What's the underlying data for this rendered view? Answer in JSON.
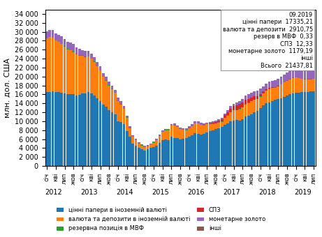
{
  "chart_data": {
    "type": "bar",
    "stacked": true,
    "ylabel": "млн. дол. США",
    "ylim": [
      0,
      35000
    ],
    "yticks": [
      0,
      {
        "value": 2000,
        "label": "2 000"
      },
      {
        "value": 4000,
        "label": "4 000"
      },
      {
        "value": 6000,
        "label": "6 000"
      },
      {
        "value": 8000,
        "label": "8 000"
      },
      {
        "value": 10000,
        "label": "10 000"
      },
      {
        "value": 12000,
        "label": "12 000"
      },
      {
        "value": 14000,
        "label": "14 000"
      },
      {
        "value": 16000,
        "label": "16 000"
      },
      {
        "value": 18000,
        "label": "18 000"
      },
      {
        "value": 20000,
        "label": "20 000"
      },
      {
        "value": 22000,
        "label": "22 000"
      },
      {
        "value": 24000,
        "label": "24 000"
      },
      {
        "value": 26000,
        "label": "26 000"
      },
      {
        "value": 28000,
        "label": "28 000"
      },
      {
        "value": 30000,
        "label": "30 000"
      },
      {
        "value": 32000,
        "label": "32 000"
      },
      {
        "value": 34000,
        "label": "34 000"
      }
    ],
    "legend": "lower center",
    "categories": [
      "січ",
      null,
      null,
      "кві",
      null,
      null,
      "лип",
      null,
      null,
      "жов",
      null,
      null,
      "січ",
      null,
      null,
      "кві",
      null,
      null,
      "лип",
      null,
      null,
      "жов",
      null,
      null,
      "січ",
      null,
      null,
      "кві",
      null,
      null,
      "лип",
      null,
      null,
      "жов",
      null,
      null,
      "січ",
      null,
      null,
      "кві",
      null,
      null,
      "лип",
      null,
      null,
      "жов",
      null,
      null,
      "січ",
      null,
      null,
      "кві",
      null,
      null,
      "лип",
      null,
      null,
      "жов",
      null,
      null,
      "січ",
      null,
      null,
      "кві",
      null,
      null,
      "лип",
      null,
      null,
      "жов",
      null,
      null,
      "січ",
      null,
      null,
      "кві",
      null,
      null,
      "лип",
      null,
      null,
      "жов",
      null,
      null,
      "січ",
      null,
      null,
      "кві",
      null,
      null,
      "лип"
    ],
    "annotations": [
      {
        "text": "2012",
        "x": 0
      },
      {
        "text": "2013",
        "x": 12
      },
      {
        "text": "2014",
        "x": 24
      },
      {
        "text": "2015",
        "x": 36
      },
      {
        "text": "2016",
        "x": 48
      },
      {
        "text": "2017",
        "x": 60
      },
      {
        "text": "2018",
        "x": 72
      },
      {
        "text": "2019",
        "x": 84
      },
      {
        "text": "09.2019\nцінні папери  17335,21\nвалюта та депозити  2910,75\nрезерв в МВФ  0,33\nСПЗ  12,33\nмонетарне золото  1179,19\nінші\nВсього  21437,81"
      }
    ],
    "series": [
      {
        "name": "цінні папери в іноземній валюті",
        "values": [
          16500,
          16600,
          16700,
          16500,
          16500,
          16300,
          16200,
          16100,
          16100,
          16000,
          15800,
          15900,
          16200,
          16200,
          16500,
          16200,
          15800,
          15100,
          14500,
          13700,
          13300,
          12500,
          12000,
          11500,
          10000,
          9800,
          9300,
          7800,
          6500,
          5000,
          4500,
          4000,
          3800,
          3500,
          3800,
          4000,
          4200,
          4500,
          5200,
          5800,
          6000,
          5800,
          6500,
          6300,
          6200,
          6000,
          6100,
          6200,
          6500,
          6800,
          7300,
          7200,
          7000,
          7100,
          7500,
          7800,
          8000,
          8200,
          8500,
          8800,
          9200,
          9500,
          10000,
          10200,
          10300,
          10200,
          10500,
          11000,
          11200,
          11500,
          12000,
          12300,
          13000,
          13500,
          14000,
          14200,
          14500,
          14800,
          15000,
          15200,
          15500,
          15800,
          16000,
          16200,
          16300,
          16400,
          16500,
          16500,
          16600,
          16700,
          16700
        ]
      },
      {
        "name": "валюта та депозити в іноземній валюті",
        "values": [
          12000,
          12200,
          12000,
          11500,
          11200,
          11000,
          10500,
          10000,
          9800,
          9500,
          9200,
          8800,
          8500,
          8200,
          8000,
          7800,
          7500,
          7200,
          6800,
          6200,
          5800,
          5500,
          5200,
          4800,
          4500,
          4000,
          3500,
          3000,
          2000,
          1500,
          1200,
          1000,
          800,
          700,
          600,
          800,
          1000,
          1200,
          1500,
          1800,
          2000,
          2200,
          2500,
          2800,
          2500,
          2200,
          2000,
          1800,
          2000,
          2100,
          2200,
          2300,
          2200,
          2000,
          1800,
          1500,
          1400,
          1300,
          1200,
          1100,
          1500,
          1800,
          2000,
          2200,
          2200,
          2500,
          2600,
          2800,
          2900,
          3000,
          2800,
          2600,
          2500,
          2700,
          2800,
          3000,
          2900,
          2700,
          2800,
          3000,
          3200,
          3300,
          3400,
          3500,
          3500,
          3200,
          3000,
          2900,
          2800,
          2700,
          2800
        ]
      },
      {
        "name": "резервна позиція в МВФ",
        "values": [
          50,
          50,
          50,
          50,
          50,
          50,
          50,
          50,
          50,
          50,
          50,
          50,
          50,
          50,
          50,
          50,
          50,
          50,
          50,
          50,
          50,
          50,
          50,
          50,
          50,
          50,
          50,
          50,
          50,
          50,
          50,
          50,
          50,
          50,
          50,
          50,
          50,
          50,
          50,
          50,
          50,
          50,
          50,
          50,
          50,
          50,
          50,
          50,
          50,
          50,
          50,
          50,
          50,
          50,
          50,
          50,
          50,
          50,
          50,
          50,
          50,
          50,
          50,
          50,
          50,
          50,
          50,
          50,
          50,
          50,
          50,
          50,
          50,
          50,
          50,
          50,
          50,
          50,
          50,
          50,
          50,
          50,
          50,
          50,
          50,
          50,
          50,
          50,
          50,
          50,
          50
        ]
      },
      {
        "name": "СПЗ",
        "values": [
          12,
          12,
          12,
          12,
          12,
          12,
          12,
          12,
          12,
          12,
          12,
          12,
          12,
          12,
          12,
          12,
          12,
          12,
          12,
          12,
          12,
          12,
          12,
          12,
          12,
          12,
          12,
          12,
          12,
          12,
          12,
          12,
          12,
          12,
          12,
          12,
          12,
          12,
          12,
          12,
          12,
          12,
          12,
          12,
          12,
          12,
          12,
          12,
          12,
          12,
          12,
          12,
          12,
          12,
          12,
          100,
          200,
          300,
          400,
          500,
          600,
          700,
          800,
          900,
          1000,
          1100,
          1100,
          1000,
          900,
          800,
          700,
          600,
          500,
          400,
          300,
          200,
          100,
          20,
          20,
          20,
          20,
          20,
          20,
          20,
          20,
          20,
          20,
          20,
          20,
          20,
          20
        ]
      },
      {
        "name": "монетарне золото",
        "values": [
          1500,
          1500,
          1600,
          1600,
          1600,
          1700,
          1700,
          1600,
          1600,
          1700,
          1500,
          1400,
          1200,
          1200,
          1200,
          1100,
          1000,
          900,
          900,
          800,
          800,
          800,
          700,
          700,
          700,
          600,
          500,
          400,
          350,
          300,
          250,
          200,
          200,
          200,
          200,
          200,
          250,
          300,
          300,
          300,
          250,
          250,
          300,
          300,
          300,
          300,
          300,
          300,
          350,
          350,
          350,
          350,
          350,
          350,
          350,
          350,
          350,
          350,
          350,
          350,
          400,
          400,
          500,
          600,
          700,
          700,
          800,
          900,
          1000,
          1100,
          1200,
          1300,
          1200,
          1200,
          1300,
          1400,
          1500,
          1600,
          1600,
          1700,
          1700,
          1700,
          1700,
          1700,
          1700,
          1700,
          1700,
          1700,
          1700,
          1700,
          1700
        ]
      },
      {
        "name": "інші",
        "values": [
          0,
          0,
          0,
          0,
          0,
          0,
          0,
          0,
          0,
          0,
          0,
          0,
          0,
          0,
          0,
          0,
          0,
          0,
          0,
          0,
          0,
          0,
          0,
          0,
          0,
          0,
          0,
          0,
          0,
          0,
          0,
          0,
          0,
          0,
          0,
          0,
          0,
          0,
          0,
          0,
          0,
          0,
          0,
          0,
          0,
          0,
          0,
          0,
          0,
          0,
          0,
          0,
          0,
          0,
          0,
          0,
          0,
          0,
          0,
          0,
          0,
          0,
          0,
          0,
          0,
          0,
          0,
          0,
          0,
          0,
          0,
          0,
          0,
          0,
          0,
          0,
          0,
          0,
          0,
          0,
          0,
          0,
          0,
          0,
          0,
          0,
          0,
          0,
          0,
          0,
          0
        ]
      }
    ]
  }
}
